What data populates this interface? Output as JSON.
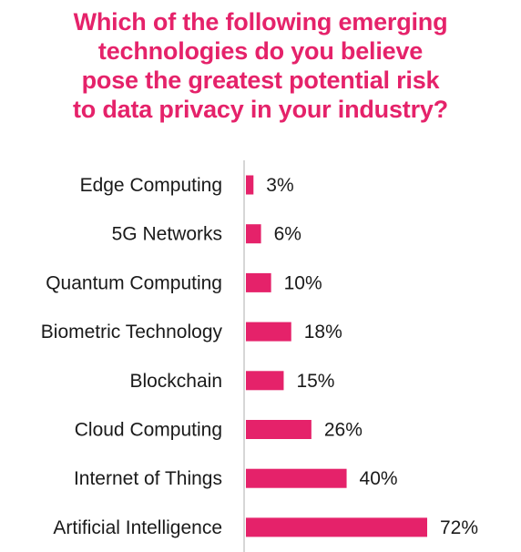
{
  "title_lines": [
    "Which of the following emerging",
    "technologies do you believe",
    "pose the greatest potential risk",
    "to data privacy in your industry?"
  ],
  "colors": {
    "title": "#e5226a",
    "bar": "#e5226a",
    "axis": "#c8c8c8",
    "text": "#1a1a1a"
  },
  "chart_data": {
    "type": "bar",
    "orientation": "horizontal",
    "title": "Which of the following emerging technologies do you believe pose the greatest potential risk to data privacy in your industry?",
    "categories": [
      "Edge Computing",
      "5G Networks",
      "Quantum Computing",
      "Biometric Technology",
      "Blockchain",
      "Cloud Computing",
      "Internet of Things",
      "Artificial Intelligence"
    ],
    "values": [
      3,
      6,
      10,
      18,
      15,
      26,
      40,
      72
    ],
    "value_labels": [
      "3%",
      "6%",
      "10%",
      "18%",
      "15%",
      "26%",
      "40%",
      "72%"
    ],
    "unit": "%",
    "xlim": [
      0,
      72
    ],
    "grid": false,
    "legend": "none"
  }
}
